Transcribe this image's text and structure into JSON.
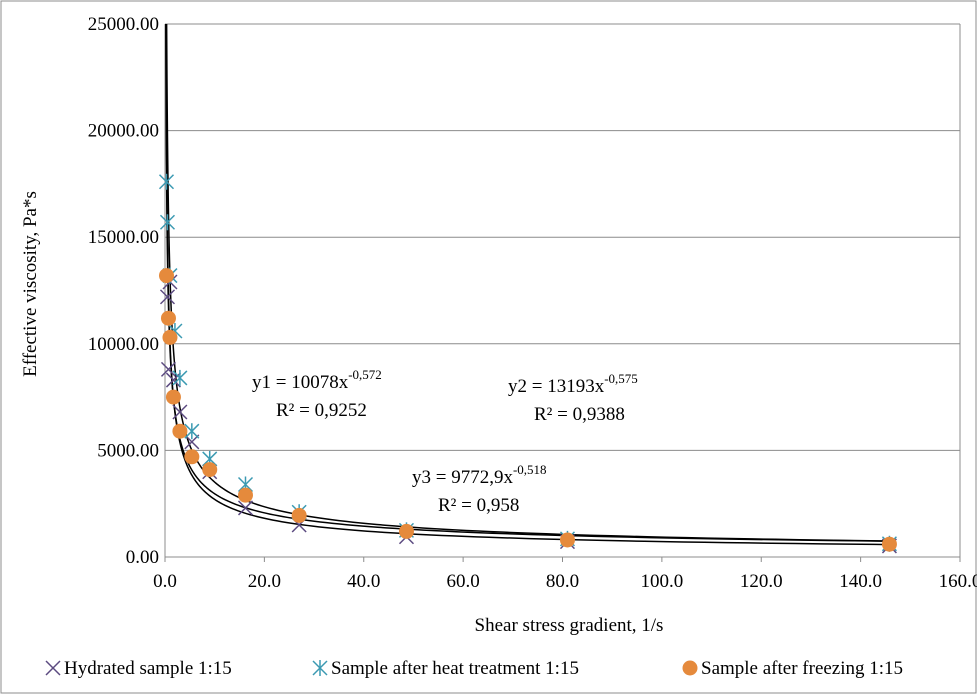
{
  "chart_data": {
    "type": "scatter",
    "xlabel": "Shear stress gradient, 1/s",
    "ylabel": "Effective viscosity, Pa*s",
    "xlim": [
      0,
      160
    ],
    "ylim": [
      0,
      25000
    ],
    "x_ticks": [
      "0.0",
      "20.0",
      "40.0",
      "60.0",
      "80.0",
      "100.0",
      "120.0",
      "140.0",
      "160.0"
    ],
    "y_ticks": [
      "0.00",
      "5000.00",
      "10000.00",
      "15000.00",
      "20000.00",
      "25000.00"
    ],
    "grid": "horizontal",
    "legend_position": "bottom",
    "series": [
      {
        "name": "Hydrated sample 1:15",
        "marker": "x",
        "color": "#5b4a80",
        "points": [
          [
            0.5,
            12200
          ],
          [
            0.7,
            8800
          ],
          [
            1.0,
            12900
          ],
          [
            1.7,
            8300
          ],
          [
            3.0,
            6800
          ],
          [
            5.4,
            5400
          ],
          [
            9.0,
            4000
          ],
          [
            16.2,
            2300
          ],
          [
            27.0,
            1500
          ],
          [
            48.6,
            950
          ],
          [
            81.0,
            720
          ],
          [
            145.8,
            520
          ]
        ],
        "trendline": {
          "a": 10078,
          "b": -0.572,
          "equation": "y1 = 10078x",
          "exponent": "-0,572",
          "r2": "R² = 0,9252"
        }
      },
      {
        "name": "Sample after heat treatment 1:15",
        "marker": "asterisk",
        "color": "#3b9ab2",
        "points": [
          [
            0.3,
            17600
          ],
          [
            0.5,
            15700
          ],
          [
            1.0,
            13200
          ],
          [
            2.0,
            10600
          ],
          [
            3.0,
            8400
          ],
          [
            5.4,
            5900
          ],
          [
            9.0,
            4600
          ],
          [
            16.2,
            3400
          ],
          [
            27.0,
            2100
          ],
          [
            48.6,
            1250
          ],
          [
            81.0,
            850
          ],
          [
            145.8,
            620
          ]
        ],
        "trendline": {
          "a": 13193,
          "b": -0.575,
          "equation": "y2 = 13193x",
          "exponent": "-0,575",
          "r2": "R² = 0,9388"
        }
      },
      {
        "name": "Sample after freezing 1:15",
        "marker": "circle",
        "color": "#e58a3c",
        "points": [
          [
            0.3,
            13200
          ],
          [
            0.7,
            11200
          ],
          [
            1.0,
            10300
          ],
          [
            1.7,
            7500
          ],
          [
            3.0,
            5900
          ],
          [
            5.4,
            4700
          ],
          [
            9.0,
            4100
          ],
          [
            16.2,
            2900
          ],
          [
            27.0,
            1950
          ],
          [
            48.6,
            1200
          ],
          [
            81.0,
            800
          ],
          [
            145.8,
            600
          ]
        ],
        "trendline": {
          "a": 9772.9,
          "b": -0.518,
          "equation": "y3 = 9772,9x",
          "exponent": "-0,518",
          "r2": "R² = 0,958"
        }
      }
    ]
  }
}
